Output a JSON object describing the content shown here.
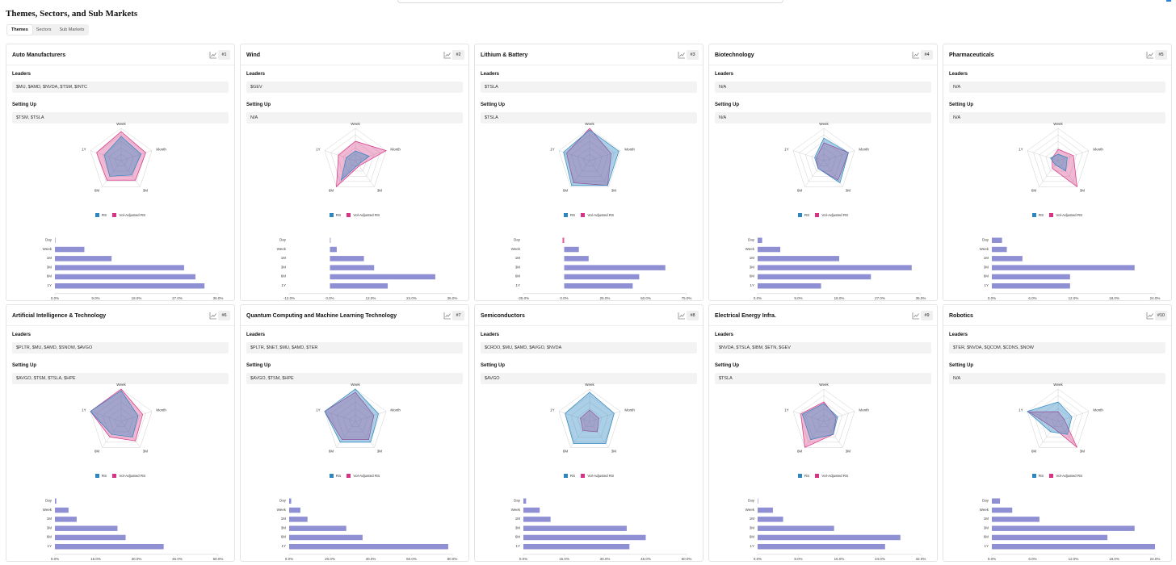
{
  "page_title": "Themes, Sectors, and Sub Markets",
  "tabs": [
    {
      "label": "Themes",
      "active": true
    },
    {
      "label": "Sectors",
      "active": false
    },
    {
      "label": "Sub Markets",
      "active": false
    }
  ],
  "labels": {
    "leaders": "Leaders",
    "setting_up": "Setting Up"
  },
  "legend": {
    "rs": "RS",
    "vol": "Vol-Adjusted RS"
  },
  "colors": {
    "rs": "#2e86c1",
    "vol": "#d63384",
    "bar": "#8f8fd4",
    "grid": "#d0d0d0"
  },
  "icons": {
    "chart": "chart-icon"
  },
  "radar_axes": [
    "Week",
    "Month",
    "3M",
    "6M",
    "1Y"
  ],
  "bar_periods": [
    "Day",
    "Week",
    "1M",
    "3M",
    "6M",
    "1Y"
  ],
  "cards": [
    {
      "title": "Auto Manufacturers",
      "rank": "#1",
      "leaders": "$MU, $AMD, $NVDA, $TSM, $INTC",
      "setting_up": "$TSM, $TSLA",
      "chart_data": {
        "type": "radar+bar",
        "rs": [
          0.75,
          0.65,
          0.55,
          0.6,
          0.55
        ],
        "vol": [
          0.9,
          0.8,
          0.75,
          0.75,
          0.8
        ],
        "bar_values": [
          0.0,
          6.5,
          12.5,
          28.5,
          31.0,
          33.0
        ],
        "x_ticks": [
          "0.0%",
          "9.0%",
          "18.0%",
          "27.0%",
          "36.0%"
        ],
        "x_min": 0,
        "x_max": 36
      }
    },
    {
      "title": "Wind",
      "rank": "#2",
      "leaders": "$GEV",
      "setting_up": "N/A",
      "chart_data": {
        "type": "radar+bar",
        "rs": [
          0.3,
          0.45,
          0.15,
          0.75,
          0.3
        ],
        "vol": [
          0.6,
          1.0,
          0.2,
          1.0,
          0.55
        ],
        "bar_values": [
          0.2,
          2.0,
          10.0,
          13.0,
          31.0,
          17.0
        ],
        "x_ticks": [
          "-12.0%",
          "0.0%",
          "12.0%",
          "24.0%",
          "36.0%"
        ],
        "x_min": -12,
        "x_max": 36
      }
    },
    {
      "title": "Lithium & Battery",
      "rank": "#3",
      "leaders": "$TSLA",
      "setting_up": "$TSLA",
      "chart_data": {
        "type": "radar+bar",
        "rs": [
          0.95,
          0.95,
          0.95,
          0.95,
          0.85
        ],
        "vol": [
          1.0,
          0.7,
          0.95,
          0.85,
          0.75
        ],
        "bar_values": [
          -1.0,
          9.0,
          15.0,
          62.0,
          46.0,
          42.0
        ],
        "x_ticks": [
          "-25.0%",
          "0.0%",
          "25.0%",
          "50.0%",
          "75.0%"
        ],
        "x_min": -25,
        "x_max": 75
      }
    },
    {
      "title": "Biotechnology",
      "rank": "#4",
      "leaders": "N/A",
      "setting_up": "N/A",
      "chart_data": {
        "type": "radar+bar",
        "rs": [
          0.7,
          0.8,
          0.85,
          0.3,
          0.3
        ],
        "vol": [
          0.55,
          0.8,
          0.75,
          0.3,
          0.25
        ],
        "bar_values": [
          1.0,
          5.0,
          18.0,
          34.0,
          25.0,
          14.0
        ],
        "x_ticks": [
          "0.0%",
          "9.0%",
          "18.0%",
          "27.0%",
          "36.0%"
        ],
        "x_min": 0,
        "x_max": 36
      }
    },
    {
      "title": "Pharmaceuticals",
      "rank": "#5",
      "leaders": "N/A",
      "setting_up": "N/A",
      "chart_data": {
        "type": "radar+bar",
        "rs": [
          0.2,
          0.3,
          0.4,
          0.15,
          0.25
        ],
        "vol": [
          0.35,
          0.5,
          1.0,
          0.3,
          0.2
        ],
        "bar_values": [
          1.5,
          2.2,
          4.5,
          21.0,
          11.5,
          11.5
        ],
        "x_ticks": [
          "0.0%",
          "6.0%",
          "12.0%",
          "18.0%",
          "24.0%"
        ],
        "x_min": 0,
        "x_max": 24
      }
    },
    {
      "title": "Artificial Intelligence & Technology",
      "rank": "#6",
      "leaders": "$PLTR, $MU, $AMD, $SNOW, $AVGO",
      "setting_up": "$AVGO, $TSM, $TSLA, $HPE",
      "chart_data": {
        "type": "radar+bar",
        "rs": [
          0.95,
          0.55,
          0.6,
          0.5,
          1.0
        ],
        "vol": [
          1.0,
          0.7,
          0.75,
          0.6,
          1.0
        ],
        "bar_values": [
          0.5,
          5.0,
          8.0,
          23.0,
          26.0,
          40.0
        ],
        "x_ticks": [
          "0.0%",
          "15.0%",
          "30.0%",
          "45.0%",
          "60.0%"
        ],
        "x_min": 0,
        "x_max": 60
      }
    },
    {
      "title": "Quantum Computing and Machine Learning Technology",
      "rank": "#7",
      "leaders": "$PLTR, $NET, $MU, $AMD, $TER",
      "setting_up": "$AVGO, $TSM, $HPE",
      "chart_data": {
        "type": "radar+bar",
        "rs": [
          1.0,
          0.75,
          0.8,
          0.8,
          1.0
        ],
        "vol": [
          0.9,
          0.6,
          0.7,
          0.7,
          1.0
        ],
        "bar_values": [
          1.0,
          5.5,
          9.0,
          28.0,
          36.0,
          78.0
        ],
        "x_ticks": [
          "0.0%",
          "20.0%",
          "40.0%",
          "60.0%",
          "80.0%"
        ],
        "x_min": 0,
        "x_max": 80
      }
    },
    {
      "title": "Semiconductors",
      "rank": "#8",
      "leaders": "$CRDO, $MU, $AMD, $AVGO, $NVDA",
      "setting_up": "$AVGO",
      "chart_data": {
        "type": "radar+bar",
        "rs": [
          0.9,
          0.8,
          0.85,
          0.85,
          0.8
        ],
        "vol": [
          0.35,
          0.3,
          0.4,
          0.35,
          0.3
        ],
        "bar_values": [
          1.0,
          6.0,
          10.0,
          38.0,
          45.0,
          39.0
        ],
        "x_ticks": [
          "0.0%",
          "15.0%",
          "30.0%",
          "45.0%",
          "60.0%"
        ],
        "x_min": 0,
        "x_max": 60
      }
    },
    {
      "title": "Electrical Energy Infra.",
      "rank": "#9",
      "leaders": "$NVDA, $TSLA, $IBM, $ETN, $GEV",
      "setting_up": "$TSLA",
      "chart_data": {
        "type": "radar+bar",
        "rs": [
          0.55,
          0.45,
          0.5,
          0.7,
          0.7
        ],
        "vol": [
          0.6,
          0.4,
          0.5,
          1.0,
          0.75
        ],
        "bar_values": [
          0.0,
          3.0,
          5.0,
          15.0,
          28.0,
          25.0
        ],
        "x_ticks": [
          "0.0%",
          "8.0%",
          "16.0%",
          "24.0%",
          "32.0%"
        ],
        "x_min": 0,
        "x_max": 32
      }
    },
    {
      "title": "Robotics",
      "rank": "#10",
      "leaders": "$TER, $NVDA, $QCOM, $CDNS, $NOW",
      "setting_up": "N/A",
      "chart_data": {
        "type": "radar+bar",
        "rs": [
          0.6,
          0.45,
          0.5,
          0.4,
          1.0
        ],
        "vol": [
          0.3,
          0.2,
          1.0,
          0.25,
          0.95
        ],
        "bar_values": [
          1.2,
          3.0,
          7.0,
          21.0,
          17.0,
          24.0
        ],
        "x_ticks": [
          "0.0%",
          "6.0%",
          "12.0%",
          "18.0%",
          "24.0%"
        ],
        "x_min": 0,
        "x_max": 24
      }
    }
  ]
}
